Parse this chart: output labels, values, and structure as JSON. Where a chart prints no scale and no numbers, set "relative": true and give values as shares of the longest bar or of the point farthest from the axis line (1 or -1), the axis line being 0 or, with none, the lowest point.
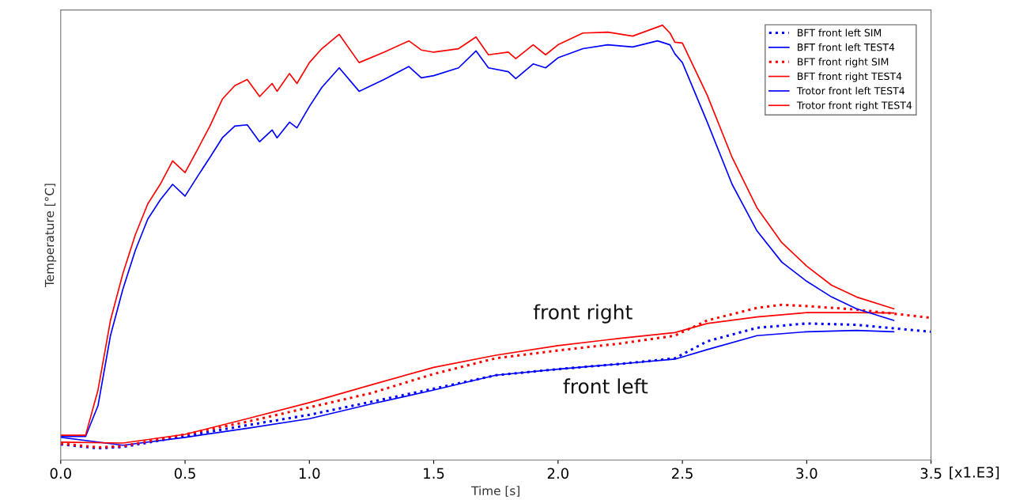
{
  "chart_data": {
    "type": "line",
    "relative": true,
    "xlabel": "Time [s]",
    "ylabel": "Temperature [°C]",
    "xlim": [
      0,
      3.5
    ],
    "xticks": [
      {
        "value": 0,
        "label": "0.0"
      },
      0.5,
      {
        "value": 1,
        "label": "1.0"
      },
      1.5,
      {
        "value": 2,
        "label": "2.0"
      },
      2.5,
      {
        "value": 3,
        "label": "3.0"
      },
      3.5
    ],
    "grid": false,
    "legend": "top right",
    "annotations": [
      "[x1.E3]",
      "front right",
      "front left"
    ],
    "series": [
      {
        "name": "BFT front left SIM",
        "color": "#0000ff",
        "line_style": "dotted",
        "x": [
          0,
          0.15,
          0.25,
          0.5,
          0.75,
          1.0,
          1.25,
          1.5,
          1.75,
          2.0,
          2.25,
          2.47,
          2.6,
          2.8,
          3.0,
          3.2,
          3.5
        ],
        "values": [
          0.036,
          0.027,
          0.03,
          0.055,
          0.08,
          0.104,
          0.134,
          0.164,
          0.195,
          0.209,
          0.221,
          0.234,
          0.273,
          0.304,
          0.314,
          0.311,
          0.295
        ]
      },
      {
        "name": "BFT front left TEST4",
        "color": "#0000ff",
        "line_style": "solid",
        "x": [
          0,
          0.25,
          0.5,
          0.75,
          1.0,
          1.25,
          1.5,
          1.75,
          2.0,
          2.25,
          2.47,
          2.6,
          2.8,
          3.0,
          3.2,
          3.35
        ],
        "values": [
          0.052,
          0.034,
          0.052,
          0.073,
          0.095,
          0.129,
          0.161,
          0.195,
          0.209,
          0.221,
          0.232,
          0.254,
          0.286,
          0.295,
          0.298,
          0.295
        ]
      },
      {
        "name": "BFT front right SIM",
        "color": "#ff0000",
        "line_style": "dotted",
        "x": [
          0,
          0.15,
          0.25,
          0.5,
          0.75,
          1.0,
          1.25,
          1.5,
          1.75,
          2.0,
          2.25,
          2.47,
          2.6,
          2.8,
          2.9,
          3.0,
          3.2,
          3.5
        ],
        "values": [
          0.038,
          0.029,
          0.032,
          0.059,
          0.088,
          0.121,
          0.154,
          0.198,
          0.234,
          0.252,
          0.268,
          0.286,
          0.321,
          0.35,
          0.357,
          0.354,
          0.346,
          0.327
        ]
      },
      {
        "name": "BFT front right TEST4",
        "color": "#ff0000",
        "line_style": "solid",
        "x": [
          0,
          0.25,
          0.5,
          0.75,
          1.0,
          1.25,
          1.5,
          1.75,
          2.0,
          2.25,
          2.47,
          2.6,
          2.8,
          3.0,
          3.2,
          3.35
        ],
        "values": [
          0.041,
          0.039,
          0.059,
          0.095,
          0.132,
          0.173,
          0.213,
          0.241,
          0.263,
          0.28,
          0.293,
          0.314,
          0.329,
          0.339,
          0.339,
          0.338
        ]
      },
      {
        "name": "Trotor front left TEST4",
        "color": "#0000ff",
        "line_style": "solid",
        "x": [
          0,
          0.1,
          0.15,
          0.2,
          0.25,
          0.3,
          0.35,
          0.4,
          0.45,
          0.5,
          0.55,
          0.6,
          0.65,
          0.7,
          0.75,
          0.8,
          0.85,
          0.87,
          0.92,
          0.95,
          1.0,
          1.05,
          1.12,
          1.2,
          1.3,
          1.4,
          1.45,
          1.5,
          1.6,
          1.67,
          1.72,
          1.8,
          1.83,
          1.9,
          1.95,
          2.0,
          2.1,
          2.2,
          2.3,
          2.4,
          2.45,
          2.47,
          2.5,
          2.6,
          2.7,
          2.8,
          2.9,
          3.0,
          3.1,
          3.2,
          3.35
        ],
        "values": [
          0.054,
          0.054,
          0.125,
          0.286,
          0.393,
          0.482,
          0.554,
          0.598,
          0.634,
          0.607,
          0.652,
          0.696,
          0.741,
          0.768,
          0.771,
          0.732,
          0.759,
          0.741,
          0.777,
          0.764,
          0.813,
          0.857,
          0.902,
          0.848,
          0.875,
          0.905,
          0.879,
          0.884,
          0.902,
          0.941,
          0.902,
          0.893,
          0.877,
          0.911,
          0.902,
          0.925,
          0.946,
          0.955,
          0.95,
          0.964,
          0.955,
          0.934,
          0.914,
          0.777,
          0.634,
          0.527,
          0.455,
          0.411,
          0.375,
          0.348,
          0.321
        ]
      },
      {
        "name": "Trotor front right TEST4",
        "color": "#ff0000",
        "line_style": "solid",
        "x": [
          0,
          0.1,
          0.15,
          0.2,
          0.25,
          0.3,
          0.35,
          0.4,
          0.45,
          0.5,
          0.55,
          0.6,
          0.65,
          0.7,
          0.75,
          0.8,
          0.85,
          0.87,
          0.92,
          0.95,
          1.0,
          1.05,
          1.12,
          1.2,
          1.3,
          1.4,
          1.45,
          1.5,
          1.6,
          1.67,
          1.72,
          1.8,
          1.83,
          1.9,
          1.95,
          2.0,
          2.1,
          2.2,
          2.3,
          2.42,
          2.45,
          2.47,
          2.5,
          2.6,
          2.7,
          2.8,
          2.9,
          3.0,
          3.1,
          3.2,
          3.35
        ],
        "values": [
          0.057,
          0.057,
          0.161,
          0.321,
          0.429,
          0.518,
          0.589,
          0.634,
          0.688,
          0.661,
          0.714,
          0.768,
          0.83,
          0.861,
          0.875,
          0.836,
          0.866,
          0.848,
          0.889,
          0.866,
          0.914,
          0.946,
          0.979,
          0.914,
          0.938,
          0.964,
          0.943,
          0.938,
          0.946,
          0.973,
          0.932,
          0.938,
          0.923,
          0.955,
          0.932,
          0.955,
          0.982,
          0.984,
          0.975,
          1.0,
          0.982,
          0.961,
          0.959,
          0.839,
          0.696,
          0.58,
          0.5,
          0.446,
          0.402,
          0.375,
          0.348
        ]
      }
    ]
  }
}
